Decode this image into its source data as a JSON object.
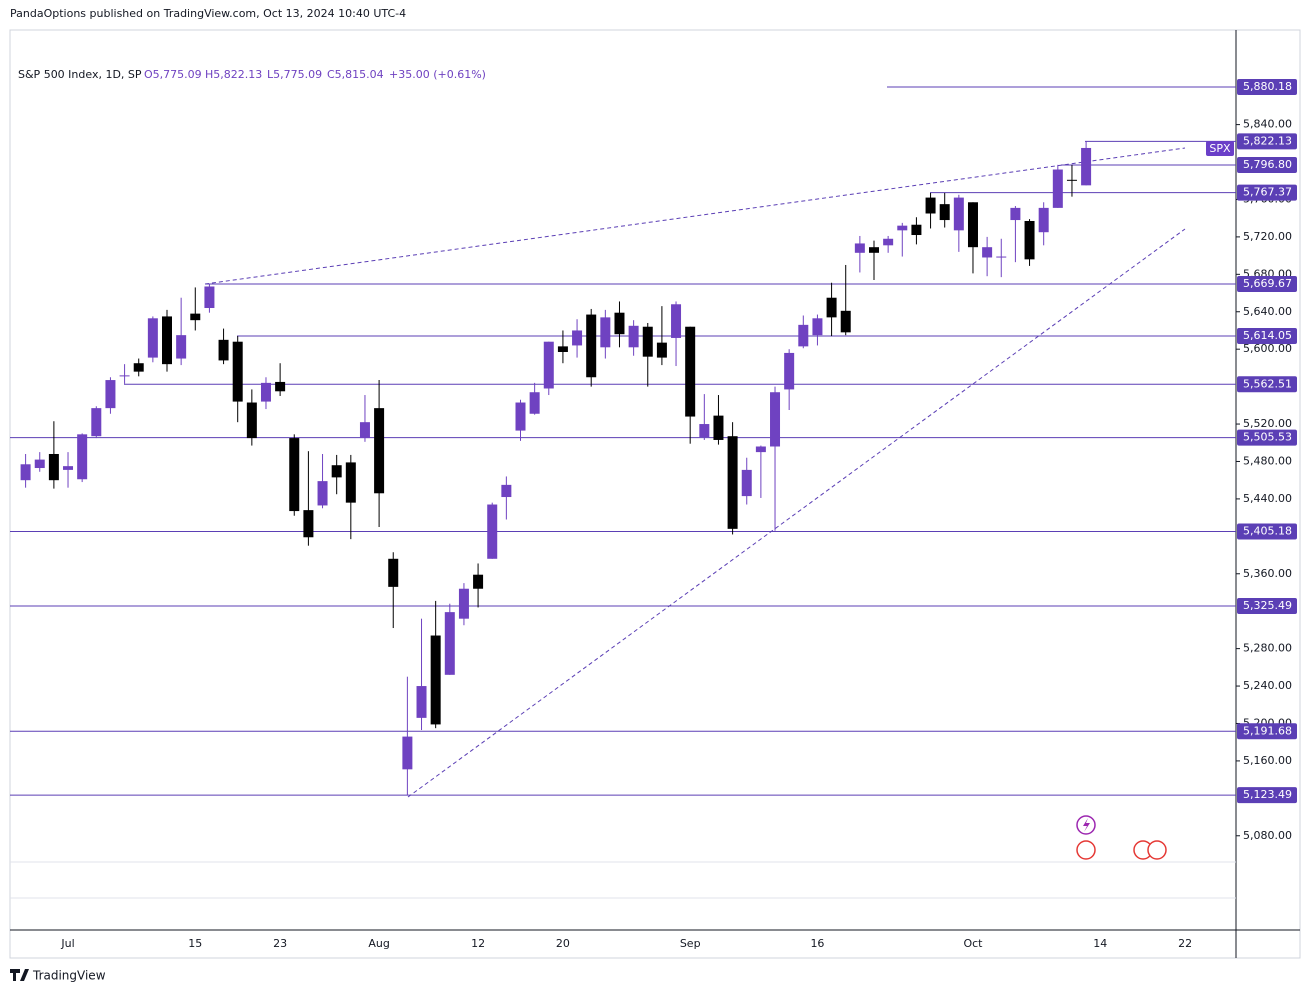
{
  "header": {
    "publisher": "PandaOptions published on TradingView.com, Oct 13, 2024 10:40 UTC-4"
  },
  "footer": {
    "brand": "TradingView"
  },
  "chart_data": {
    "type": "candlestick",
    "legend": {
      "symbol": "S&P 500 Index, 1D, SP",
      "open": "O5,775.09",
      "high": "H5,822.13",
      "low": "L5,775.09",
      "close": "C5,815.04",
      "change": "+35.00 (+0.61%)"
    },
    "symbol_tag": "SPX",
    "up_color": "#6f42c1",
    "down_color": "#000000",
    "level_color": "#5b3fb5",
    "categories": [
      null,
      null,
      null,
      "Jul",
      null,
      null,
      null,
      null,
      null,
      null,
      null,
      null,
      "15",
      null,
      null,
      null,
      null,
      null,
      "23",
      null,
      null,
      null,
      null,
      null,
      null,
      "Aug",
      null,
      null,
      null,
      null,
      null,
      null,
      "12",
      null,
      null,
      null,
      null,
      null,
      "20",
      null,
      null,
      null,
      null,
      null,
      null,
      null,
      null,
      "Sep",
      null,
      null,
      null,
      null,
      null,
      null,
      null,
      null,
      "16",
      null,
      null,
      null,
      null,
      null,
      null,
      null,
      null,
      null,
      null,
      "Oct",
      null,
      null,
      null,
      null,
      null,
      null,
      null,
      null,
      "14",
      null,
      null,
      null,
      null,
      null,
      "22"
    ],
    "open": [
      5460,
      5473,
      5488,
      5471,
      5461,
      5507,
      5537,
      5572,
      5585,
      5591,
      5635,
      5590,
      5638,
      5644,
      5610,
      5608,
      5543,
      5544,
      5565,
      5505,
      5428,
      5433,
      5476,
      5479,
      5505,
      5537,
      5376,
      5151,
      5206,
      5294,
      5252,
      5312,
      5359,
      5376,
      5442,
      5513,
      5531,
      5558,
      5603,
      5604,
      5637,
      5602,
      5639,
      5602,
      5624,
      5607,
      5612,
      5624,
      5506,
      5529,
      5507,
      5443,
      5490,
      5496,
      5557,
      5603,
      5615,
      5655,
      5641,
      5703,
      5709,
      5711,
      5727,
      5733,
      5762,
      5755,
      5727,
      5757,
      5698,
      5698,
      5738,
      5737,
      5725,
      5751,
      5781,
      5775.09,
      null,
      null,
      null,
      null,
      null,
      null,
      null
    ],
    "high": [
      5488,
      5490,
      5523,
      5490,
      5510,
      5539,
      5570,
      5584,
      5590,
      5635,
      5642,
      5655,
      5666,
      5669.67,
      5622,
      5614,
      5557,
      5570,
      5585,
      5509,
      5491,
      5488,
      5487,
      5487,
      5551,
      5567,
      5383,
      5250,
      5312,
      5331,
      5328,
      5350,
      5371,
      5436,
      5464,
      5546,
      5564,
      5608,
      5620,
      5632,
      5643,
      5642,
      5651,
      5631,
      5628,
      5646,
      5651,
      5624,
      5552,
      5551,
      5522,
      5484,
      5497,
      5560,
      5600,
      5636,
      5637,
      5671,
      5690,
      5721,
      5716,
      5721,
      5735,
      5741,
      5767,
      5767,
      5765,
      5757,
      5720,
      5718,
      5753,
      5739,
      5757,
      5797,
      5796.8,
      5822.13,
      null,
      null,
      null,
      null,
      null,
      null,
      null
    ],
    "low": [
      5452,
      5469,
      5451,
      5452,
      5458,
      5505,
      5531,
      5563,
      5571,
      5586,
      5576,
      5583,
      5620,
      5639,
      5584,
      5522,
      5497,
      5536,
      5550,
      5422,
      5390,
      5430,
      5445,
      5397,
      5501,
      5410,
      5302,
      5123.49,
      5193,
      5195,
      5252,
      5305,
      5324,
      5376,
      5418,
      5502,
      5530,
      5551,
      5585,
      5591,
      5560,
      5590,
      5602,
      5593,
      5560,
      5583,
      5582,
      5499,
      5503,
      5498,
      5402,
      5434,
      5441,
      5406,
      5535,
      5601,
      5604,
      5614,
      5615,
      5682,
      5674,
      5703,
      5699,
      5712,
      5729,
      5730,
      5704,
      5681,
      5678,
      5677,
      5693,
      5689,
      5711,
      5751,
      5763,
      5775.09,
      null,
      null,
      null,
      null,
      null,
      null,
      null
    ],
    "close": [
      5477,
      5482,
      5460,
      5475,
      5509,
      5537,
      5567,
      5572,
      5576,
      5633,
      5584,
      5615,
      5631,
      5667,
      5588,
      5544,
      5505,
      5564,
      5555,
      5427,
      5399,
      5459,
      5463,
      5436,
      5522,
      5446,
      5346,
      5186,
      5240,
      5199,
      5319,
      5344,
      5344,
      5434,
      5455,
      5543,
      5554,
      5608,
      5597,
      5620,
      5570,
      5634,
      5616,
      5625,
      5592,
      5591,
      5648,
      5528,
      5520,
      5503,
      5408,
      5471,
      5496,
      5554,
      5596,
      5626,
      5633,
      5634,
      5618,
      5713,
      5703,
      5718,
      5732,
      5722,
      5745,
      5738,
      5762,
      5709,
      5709,
      5699,
      5751,
      5696,
      5751,
      5792,
      5780,
      5815.04,
      null,
      null,
      null,
      null,
      null,
      null,
      null
    ],
    "ylim": [
      4979.3,
      5941.1
    ],
    "yticks": [
      {
        "value": 5080,
        "label": "5,080.00"
      },
      {
        "value": 5160,
        "label": "5,160.00"
      },
      {
        "value": 5200,
        "label": "5,200.00"
      },
      {
        "value": 5240,
        "label": "5,240.00"
      },
      {
        "value": 5280,
        "label": "5,280.00"
      },
      {
        "value": 5360,
        "label": "5,360.00"
      },
      {
        "value": 5440,
        "label": "5,440.00"
      },
      {
        "value": 5480,
        "label": "5,480.00"
      },
      {
        "value": 5520,
        "label": "5,520.00"
      },
      {
        "value": 5600,
        "label": "5,600.00"
      },
      {
        "value": 5640,
        "label": "5,640.00"
      },
      {
        "value": 5680,
        "label": "5,680.00"
      },
      {
        "value": 5720,
        "label": "5,720.00"
      },
      {
        "value": 5760,
        "label": "5,760.00"
      },
      {
        "value": 5840,
        "label": "5,840.00"
      }
    ],
    "levels": [
      {
        "value": 5880.18,
        "label": "5,880.18"
      },
      {
        "value": 5822.13,
        "label": "5,822.13"
      },
      {
        "value": 5796.8,
        "label": "5,796.80"
      },
      {
        "value": 5767.37,
        "label": "5,767.37"
      },
      {
        "value": 5669.67,
        "label": "5,669.67"
      },
      {
        "value": 5614.05,
        "label": "5,614.05"
      },
      {
        "value": 5562.51,
        "label": "5,562.51"
      },
      {
        "value": 5505.53,
        "label": "5,505.53"
      },
      {
        "value": 5405.18,
        "label": "5,405.18"
      },
      {
        "value": 5325.49,
        "label": "5,325.49"
      },
      {
        "value": 5191.68,
        "label": "5,191.68"
      },
      {
        "value": 5123.49,
        "label": "5,123.49"
      }
    ]
  }
}
